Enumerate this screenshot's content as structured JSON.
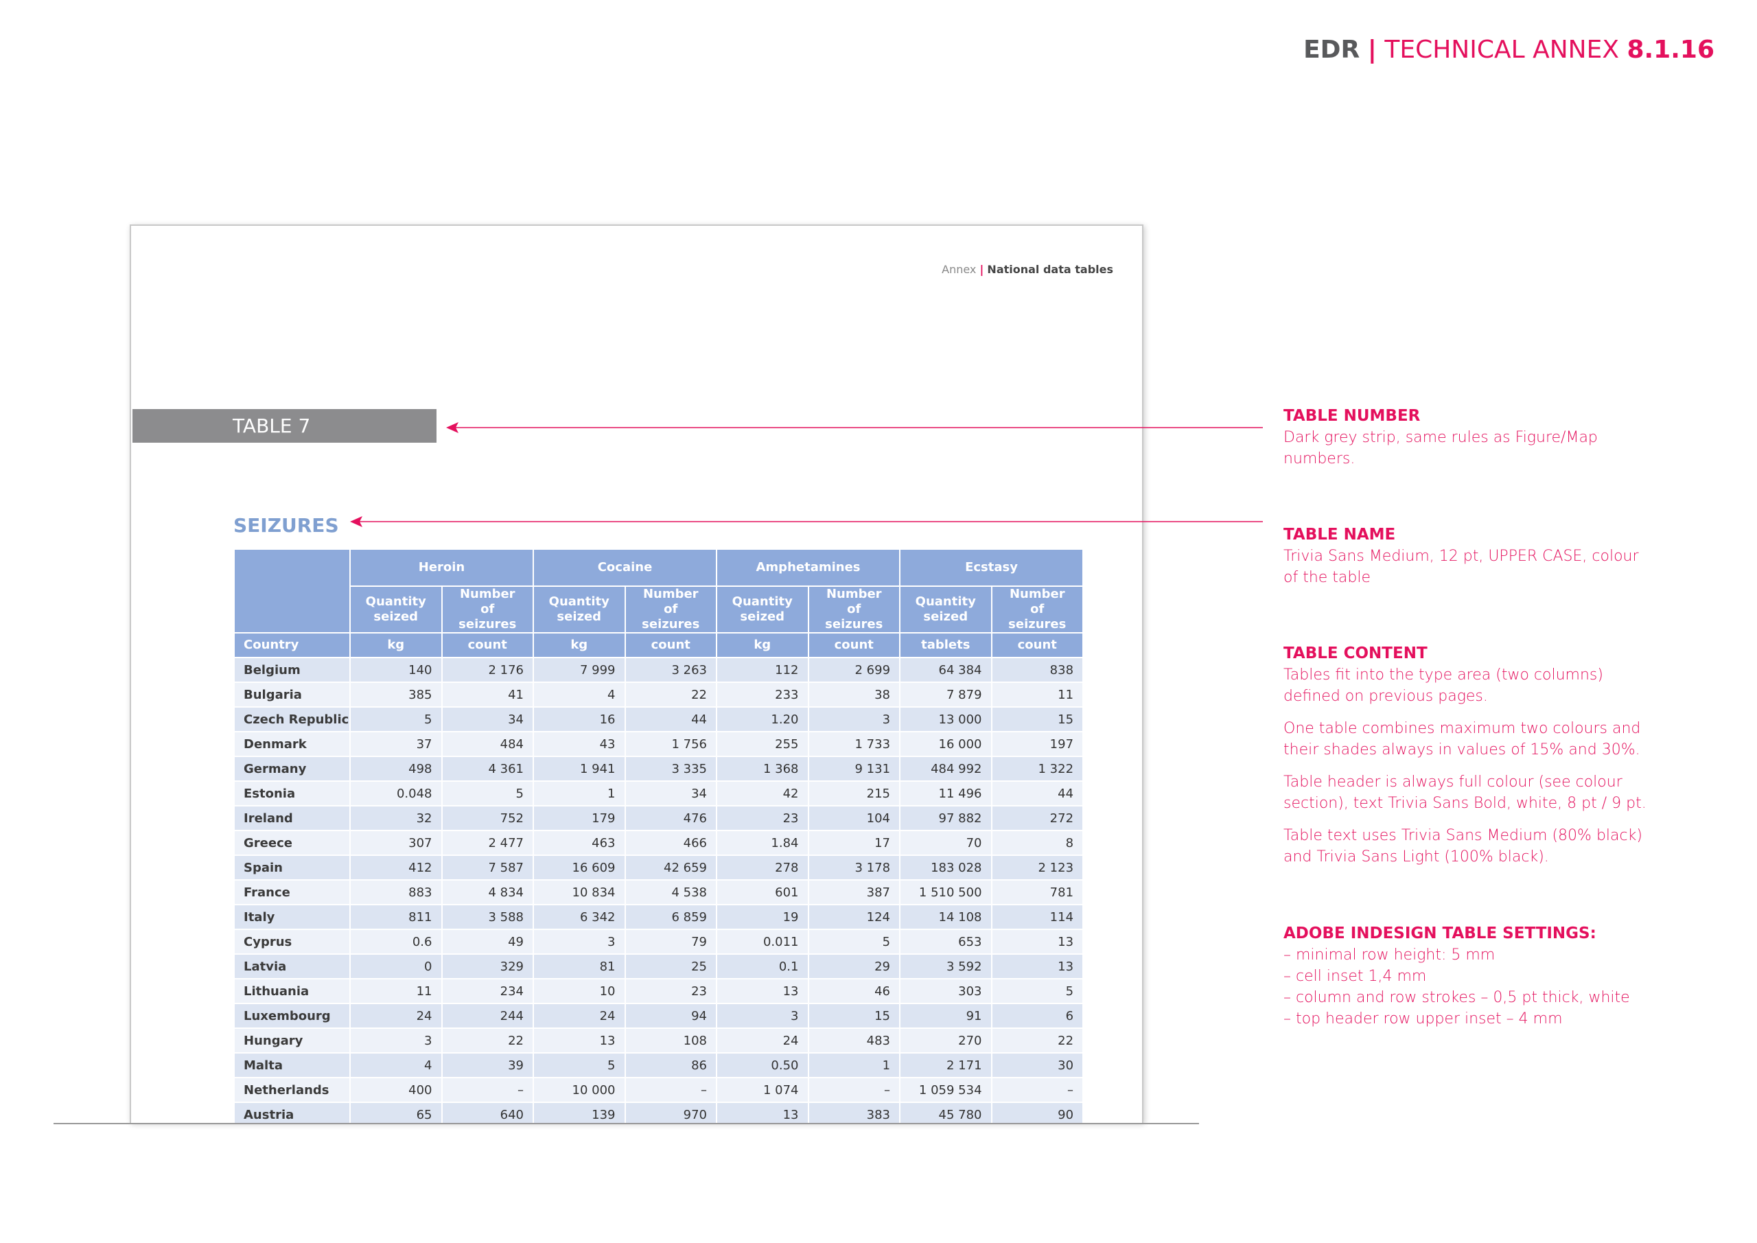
{
  "header": {
    "brand": "EDR",
    "separator": "|",
    "section": "TECHNICAL ANNEX",
    "number": "8.1.16"
  },
  "page": {
    "running_head": {
      "label": "Annex",
      "separator": "|",
      "title": "National data tables"
    },
    "table_number": "TABLE 7",
    "table_name": "SEIZURES",
    "table": {
      "groups": [
        "Heroin",
        "Cocaine",
        "Amphetamines",
        "Ecstasy"
      ],
      "subheaders": [
        "Quantity seized",
        "Number of seizures",
        "Quantity seized",
        "Number of seizures",
        "Quantity seized",
        "Number of seizures",
        "Quantity seized",
        "Number of seizures"
      ],
      "country_header": "Country",
      "units": [
        "kg",
        "count",
        "kg",
        "count",
        "kg",
        "count",
        "tablets",
        "count"
      ],
      "rows": [
        [
          "Belgium",
          "140",
          "2 176",
          "7 999",
          "3 263",
          "112",
          "2 699",
          "64 384",
          "838"
        ],
        [
          "Bulgaria",
          "385",
          "41",
          "4",
          "22",
          "233",
          "38",
          "7 879",
          "11"
        ],
        [
          "Czech Republic",
          "5",
          "34",
          "16",
          "44",
          "1.20",
          "3",
          "13 000",
          "15"
        ],
        [
          "Denmark",
          "37",
          "484",
          "43",
          "1 756",
          "255",
          "1 733",
          "16 000",
          "197"
        ],
        [
          "Germany",
          "498",
          "4 361",
          "1 941",
          "3 335",
          "1 368",
          "9 131",
          "484 992",
          "1 322"
        ],
        [
          "Estonia",
          "0.048",
          "5",
          "1",
          "34",
          "42",
          "215",
          "11 496",
          "44"
        ],
        [
          "Ireland",
          "32",
          "752",
          "179",
          "476",
          "23",
          "104",
          "97 882",
          "272"
        ],
        [
          "Greece",
          "307",
          "2 477",
          "463",
          "466",
          "1.84",
          "17",
          "70",
          "8"
        ],
        [
          "Spain",
          "412",
          "7 587",
          "16 609",
          "42 659",
          "278",
          "3 178",
          "183 028",
          "2 123"
        ],
        [
          "France",
          "883",
          "4 834",
          "10 834",
          "4 538",
          "601",
          "387",
          "1 510 500",
          "781"
        ],
        [
          "Italy",
          "811",
          "3 588",
          "6 342",
          "6 859",
          "19",
          "124",
          "14 108",
          "114"
        ],
        [
          "Cyprus",
          "0.6",
          "49",
          "3",
          "79",
          "0.011",
          "5",
          "653",
          "13"
        ],
        [
          "Latvia",
          "0",
          "329",
          "81",
          "25",
          "0.1",
          "29",
          "3 592",
          "13"
        ],
        [
          "Lithuania",
          "11",
          "234",
          "10",
          "23",
          "13",
          "46",
          "303",
          "5"
        ],
        [
          "Luxembourg",
          "24",
          "244",
          "24",
          "94",
          "3",
          "15",
          "91",
          "6"
        ],
        [
          "Hungary",
          "3",
          "22",
          "13",
          "108",
          "24",
          "483",
          "270",
          "22"
        ],
        [
          "Malta",
          "4",
          "39",
          "5",
          "86",
          "0.50",
          "1",
          "2 171",
          "30"
        ],
        [
          "Netherlands",
          "400",
          "–",
          "10 000",
          "–",
          "1 074",
          "–",
          "1 059 534",
          "–"
        ],
        [
          "Austria",
          "65",
          "640",
          "139",
          "970",
          "13",
          "383",
          "45 780",
          "90"
        ]
      ]
    }
  },
  "notes": [
    {
      "title": "TABLE NUMBER",
      "paragraphs": [
        "Dark grey strip, same rules as Figure/Map numbers."
      ]
    },
    {
      "title": "TABLE NAME",
      "paragraphs": [
        "Trivia Sans Medium, 12 pt, UPPER CASE, colour of the table"
      ]
    },
    {
      "title": "TABLE CONTENT",
      "paragraphs": [
        "Tables fit into the type area (two columns) defined on previous pages.",
        "One table combines maximum two colours and their shades always in values of 15% and 30%.",
        "Table header is always full colour (see colour section), text Trivia Sans Bold, white, 8 pt / 9 pt.",
        "Table text uses Trivia Sans Medium (80% black) and Trivia Sans Light (100% black)."
      ]
    },
    {
      "title": "ADOBE INDESIGN TABLE SETTINGS:",
      "items": [
        "– minimal row height: 5 mm",
        "– cell inset 1,4 mm",
        "– column and row strokes – 0,5 pt thick, white",
        "– top header row upper inset – 4 mm"
      ]
    }
  ]
}
